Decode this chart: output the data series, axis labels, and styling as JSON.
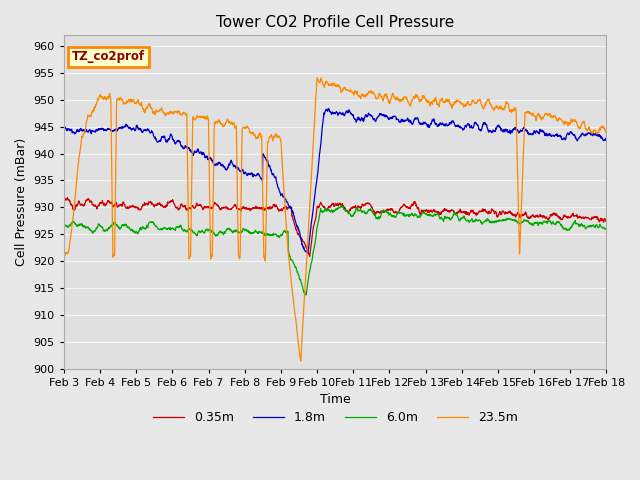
{
  "title": "Tower CO2 Profile Cell Pressure",
  "xlabel": "Time",
  "ylabel": "Cell Pressure (mBar)",
  "ylim": [
    900,
    962
  ],
  "xlim_days": [
    0,
    15
  ],
  "date_labels": [
    "Feb 3",
    "Feb 4",
    "Feb 5",
    "Feb 6",
    "Feb 7",
    "Feb 8",
    "Feb 9",
    "Feb 10",
    "Feb 11",
    "Feb 12",
    "Feb 13",
    "Feb 14",
    "Feb 15",
    "Feb 16",
    "Feb 17",
    "Feb 18"
  ],
  "date_ticks": [
    0,
    1,
    2,
    3,
    4,
    5,
    6,
    7,
    8,
    9,
    10,
    11,
    12,
    13,
    14,
    15
  ],
  "yticks": [
    900,
    905,
    910,
    915,
    920,
    925,
    930,
    935,
    940,
    945,
    950,
    955,
    960
  ],
  "series_colors": [
    "#cc0000",
    "#0000cc",
    "#00aa00",
    "#ff8800"
  ],
  "series_labels": [
    "0.35m",
    "1.8m",
    "6.0m",
    "23.5m"
  ],
  "annotation_text": "TZ_co2prof",
  "annotation_box_color": "#ffffcc",
  "annotation_border_color": "#ff8800",
  "fig_bg_color": "#e8e8e8",
  "plot_bg_color": "#e0e0e0",
  "grid_color": "#f5f5f5",
  "title_fontsize": 11,
  "axis_label_fontsize": 9,
  "tick_fontsize": 8
}
